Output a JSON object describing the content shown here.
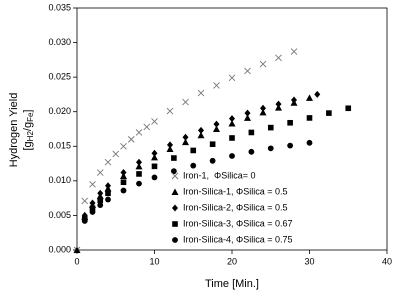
{
  "chart_data": {
    "type": "scatter",
    "xlabel": "Time [Min.]",
    "ylabel": "Hydrogen Yield",
    "ylabel_unit": [
      "[g",
      "H2",
      "/g",
      "Fe",
      "]"
    ],
    "xlim": [
      0,
      40
    ],
    "xticks": [
      0,
      10,
      20,
      30,
      40
    ],
    "ylim": [
      0,
      0.035
    ],
    "yticks": [
      {
        "value": 0,
        "label": "0.000"
      },
      {
        "value": 0.005,
        "label": "0.005"
      },
      {
        "value": 0.01,
        "label": "0.010"
      },
      {
        "value": 0.015,
        "label": "0.015"
      },
      {
        "value": 0.02,
        "label": "0.020"
      },
      {
        "value": 0.025,
        "label": "0.025"
      },
      {
        "value": 0.03,
        "label": "0.030"
      },
      {
        "value": 0.035,
        "label": "0.035"
      }
    ],
    "legend": "lower right",
    "series": [
      {
        "name": "Iron-1,  ΦSilica= 0",
        "marker": "x",
        "color": "#777777",
        "x": [
          0,
          1,
          2,
          3,
          4,
          5,
          6,
          7,
          8,
          9,
          10,
          12,
          14,
          16,
          18,
          20,
          22,
          24,
          26,
          28
        ],
        "values": [
          0,
          0.0071,
          0.0095,
          0.0112,
          0.0127,
          0.0139,
          0.015,
          0.016,
          0.017,
          0.0178,
          0.0186,
          0.0201,
          0.0214,
          0.0227,
          0.0238,
          0.0249,
          0.0259,
          0.0269,
          0.0278,
          0.0287
        ]
      },
      {
        "name": "Iron-Silica-1, ΦSilica = 0.5",
        "marker": "triangle",
        "color": "#000000",
        "x": [
          0,
          1,
          2,
          3,
          4,
          6,
          8,
          10,
          12,
          14,
          16,
          18,
          20,
          22,
          24,
          26,
          28,
          30
        ],
        "values": [
          0,
          0.0048,
          0.0065,
          0.0078,
          0.0089,
          0.0107,
          0.0121,
          0.0134,
          0.0146,
          0.0156,
          0.0166,
          0.0175,
          0.0183,
          0.0191,
          0.0199,
          0.0206,
          0.0213,
          0.022
        ]
      },
      {
        "name": "Iron-Silica-2, ΦSilica = 0.5",
        "marker": "diamond",
        "color": "#000000",
        "x": [
          1,
          2,
          3,
          4,
          6,
          8,
          10,
          12,
          14,
          16,
          18,
          20,
          22,
          24,
          26,
          28,
          31
        ],
        "values": [
          0.005,
          0.0068,
          0.0082,
          0.0093,
          0.0112,
          0.0127,
          0.014,
          0.0152,
          0.0163,
          0.0173,
          0.0182,
          0.019,
          0.0198,
          0.0205,
          0.0211,
          0.0217,
          0.0225
        ]
      },
      {
        "name": "Iron-Silica-3, ΦSilica = 0.67",
        "marker": "square",
        "color": "#000000",
        "x": [
          1,
          2,
          3,
          4,
          6,
          8,
          10,
          12.5,
          15,
          17.5,
          20,
          22.5,
          25,
          27.5,
          30,
          32.5,
          35
        ],
        "values": [
          0.0045,
          0.006,
          0.0072,
          0.0082,
          0.0098,
          0.011,
          0.0121,
          0.0133,
          0.0144,
          0.0153,
          0.0162,
          0.017,
          0.0177,
          0.0184,
          0.0191,
          0.0198,
          0.0205
        ]
      },
      {
        "name": "Iron-Silica-4, ΦSilica = 0.75",
        "marker": "circle",
        "color": "#000000",
        "x": [
          1,
          2,
          3,
          4,
          6,
          8,
          10,
          12.5,
          15,
          17.5,
          20,
          22.5,
          25,
          27.5,
          30
        ],
        "values": [
          0.0042,
          0.0055,
          0.0065,
          0.0073,
          0.0086,
          0.0096,
          0.0105,
          0.0114,
          0.0122,
          0.0129,
          0.0136,
          0.0142,
          0.0147,
          0.0151,
          0.0155
        ]
      }
    ]
  }
}
